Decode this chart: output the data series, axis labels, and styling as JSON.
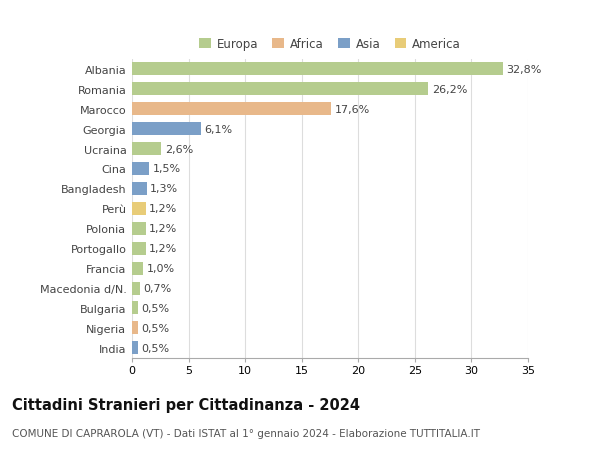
{
  "categories": [
    "Albania",
    "Romania",
    "Marocco",
    "Georgia",
    "Ucraina",
    "Cina",
    "Bangladesh",
    "Perù",
    "Polonia",
    "Portogallo",
    "Francia",
    "Macedonia d/N.",
    "Bulgaria",
    "Nigeria",
    "India"
  ],
  "values": [
    32.8,
    26.2,
    17.6,
    6.1,
    2.6,
    1.5,
    1.3,
    1.2,
    1.2,
    1.2,
    1.0,
    0.7,
    0.5,
    0.5,
    0.5
  ],
  "labels": [
    "32,8%",
    "26,2%",
    "17,6%",
    "6,1%",
    "2,6%",
    "1,5%",
    "1,3%",
    "1,2%",
    "1,2%",
    "1,2%",
    "1,0%",
    "0,7%",
    "0,5%",
    "0,5%",
    "0,5%"
  ],
  "colors": [
    "#b5cc8e",
    "#b5cc8e",
    "#e8b88a",
    "#7b9fc7",
    "#b5cc8e",
    "#7b9fc7",
    "#7b9fc7",
    "#e8cc78",
    "#b5cc8e",
    "#b5cc8e",
    "#b5cc8e",
    "#b5cc8e",
    "#b5cc8e",
    "#e8b88a",
    "#7b9fc7"
  ],
  "legend": [
    {
      "label": "Europa",
      "color": "#b5cc8e"
    },
    {
      "label": "Africa",
      "color": "#e8b88a"
    },
    {
      "label": "Asia",
      "color": "#7b9fc7"
    },
    {
      "label": "America",
      "color": "#e8cc78"
    }
  ],
  "title": "Cittadini Stranieri per Cittadinanza - 2024",
  "subtitle": "COMUNE DI CAPRAROLA (VT) - Dati ISTAT al 1° gennaio 2024 - Elaborazione TUTTITALIA.IT",
  "xlim": [
    0,
    35
  ],
  "xticks": [
    0,
    5,
    10,
    15,
    20,
    25,
    30,
    35
  ],
  "background_color": "#ffffff",
  "grid_color": "#dddddd",
  "bar_height": 0.65,
  "label_fontsize": 8,
  "tick_fontsize": 8,
  "title_fontsize": 10.5,
  "subtitle_fontsize": 7.5
}
